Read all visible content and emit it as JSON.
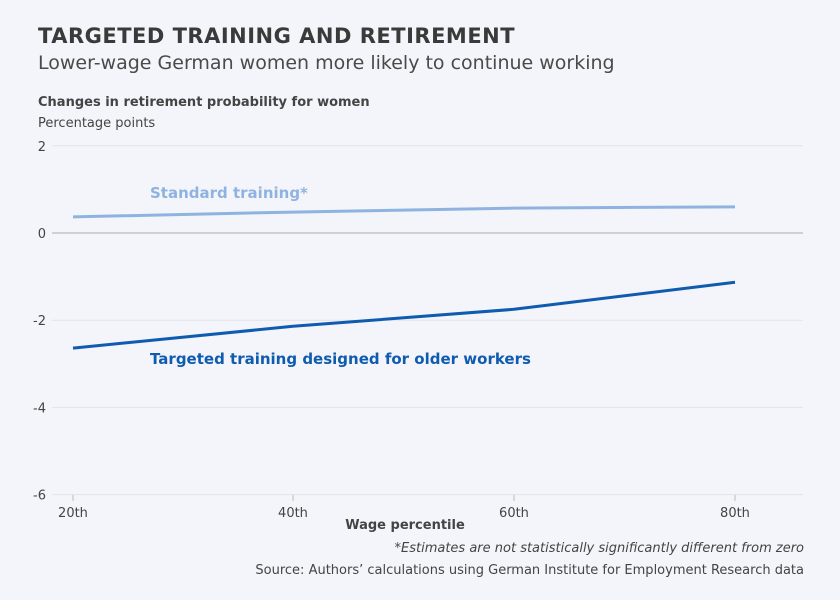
{
  "title": "TARGETED TRAINING AND RETIREMENT",
  "subtitle": "Lower-wage German women more likely to continue working",
  "footnote": "*Estimates are not statistically significantly different from zero",
  "source": "Source: Authors’ calculations using German Institute for Employment Research data",
  "chart_data": {
    "type": "line",
    "title": "TARGETED TRAINING AND RETIREMENT",
    "ylabel": "Changes in retirement probability for women",
    "yunit": "Percentage points",
    "xlabel": "Wage percentile",
    "categories": [
      "20th",
      "40th",
      "60th",
      "80th"
    ],
    "ylim": [
      -6,
      2
    ],
    "yticks": [
      2,
      0,
      -2,
      -4,
      -6
    ],
    "grid": true,
    "series": [
      {
        "name": "Standard training*",
        "color": "#8fb3e0",
        "values": [
          0.37,
          0.48,
          0.57,
          0.6
        ]
      },
      {
        "name": "Targeted training designed for older workers",
        "color": "#0f5bb0",
        "values": [
          -2.64,
          -2.14,
          -1.75,
          -1.13
        ]
      }
    ]
  }
}
